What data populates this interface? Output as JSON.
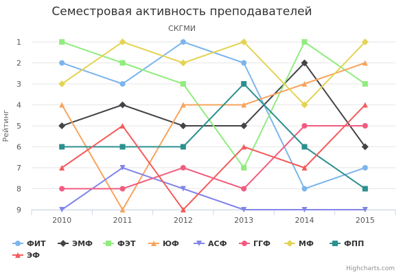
{
  "chart_data": {
    "type": "line",
    "title": "Семестровая активность преподавателей",
    "subtitle": "СКГМИ",
    "ylabel": "Рейтинг",
    "xlabel": "",
    "categories": [
      "2010",
      "2011",
      "2012",
      "2013",
      "2014",
      "2015"
    ],
    "yticks": [
      1,
      2,
      3,
      4,
      5,
      6,
      7,
      8,
      9
    ],
    "ylim": [
      1,
      9
    ],
    "y_reversed": true,
    "grid": true,
    "legend_position": "bottom",
    "series": [
      {
        "name": "ФИТ",
        "color": "#7cb5ec",
        "marker": "circle",
        "values": [
          2,
          3,
          1,
          2,
          8,
          7
        ]
      },
      {
        "name": "ЭМФ",
        "color": "#434348",
        "marker": "diamond",
        "values": [
          5,
          4,
          5,
          5,
          2,
          6
        ]
      },
      {
        "name": "ФЭТ",
        "color": "#90ed7d",
        "marker": "square",
        "values": [
          1,
          2,
          3,
          7,
          1,
          3
        ]
      },
      {
        "name": "ЮФ",
        "color": "#f7a35c",
        "marker": "triangle",
        "values": [
          4,
          9,
          4,
          4,
          3,
          2
        ]
      },
      {
        "name": "АСФ",
        "color": "#8085e9",
        "marker": "triangle-down",
        "values": [
          9,
          7,
          8,
          9,
          9,
          9
        ]
      },
      {
        "name": "ГГФ",
        "color": "#f15c80",
        "marker": "circle",
        "values": [
          8,
          8,
          7,
          8,
          5,
          5
        ]
      },
      {
        "name": "МФ",
        "color": "#e4d354",
        "marker": "diamond",
        "values": [
          3,
          1,
          2,
          1,
          4,
          1
        ]
      },
      {
        "name": "ФПП",
        "color": "#2b908f",
        "marker": "square",
        "values": [
          6,
          6,
          6,
          3,
          6,
          8
        ]
      },
      {
        "name": "ЭФ",
        "color": "#f45b5b",
        "marker": "triangle",
        "values": [
          7,
          5,
          9,
          6,
          7,
          4
        ]
      }
    ]
  },
  "credits": "Highcharts.com"
}
